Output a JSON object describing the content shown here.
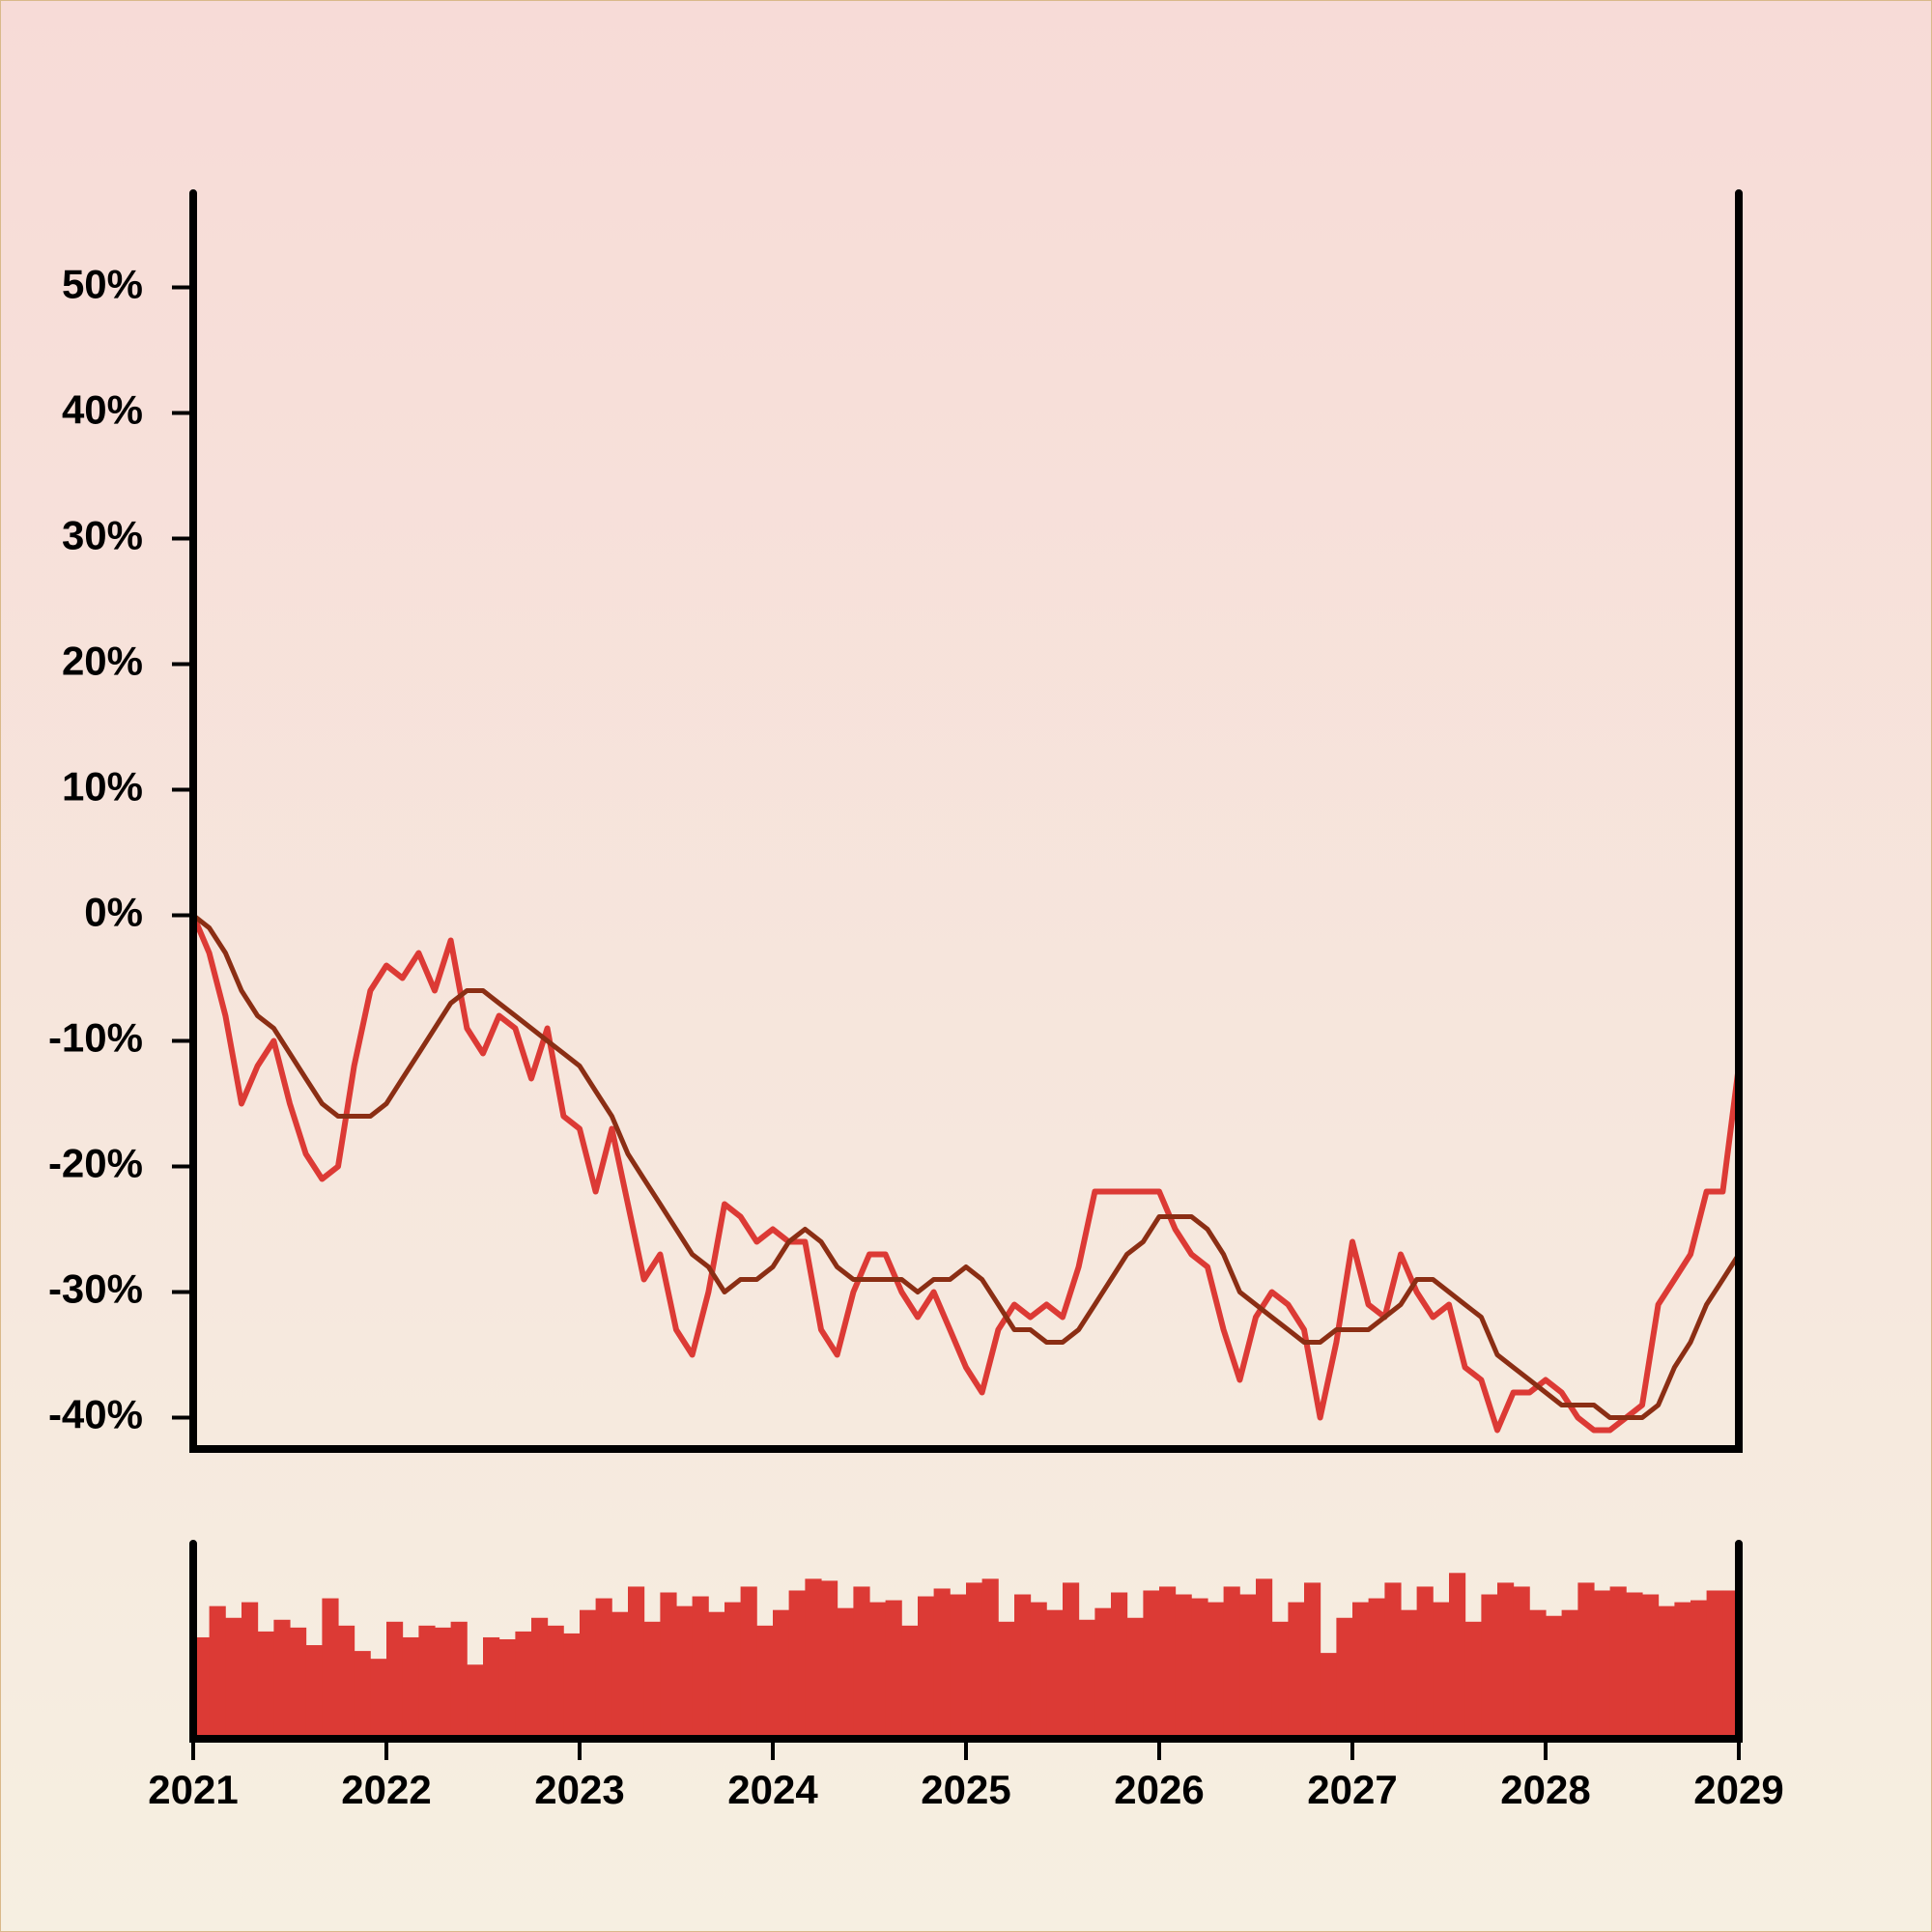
{
  "chart_data": [
    {
      "type": "line",
      "x": [
        2021,
        2021.083,
        2021.167,
        2021.25,
        2021.333,
        2021.417,
        2021.5,
        2021.583,
        2021.667,
        2021.75,
        2021.833,
        2021.917,
        2022,
        2022.083,
        2022.167,
        2022.25,
        2022.333,
        2022.417,
        2022.5,
        2022.583,
        2022.667,
        2022.75,
        2022.833,
        2022.917,
        2023,
        2023.083,
        2023.167,
        2023.25,
        2023.333,
        2023.417,
        2023.5,
        2023.583,
        2023.667,
        2023.75,
        2023.833,
        2023.917,
        2024,
        2024.083,
        2024.167,
        2024.25,
        2024.333,
        2024.417,
        2024.5,
        2024.583,
        2024.667,
        2024.75,
        2024.833,
        2024.917,
        2025,
        2025.083,
        2025.167,
        2025.25,
        2025.333,
        2025.417,
        2025.5,
        2025.583,
        2025.667,
        2025.75,
        2025.833,
        2025.917,
        2026,
        2026.083,
        2026.167,
        2026.25,
        2026.333,
        2026.417,
        2026.5,
        2026.583,
        2026.667,
        2026.75,
        2026.833,
        2026.917,
        2027,
        2027.083,
        2027.167,
        2027.25,
        2027.333,
        2027.417,
        2027.5,
        2027.583,
        2027.667,
        2027.75,
        2027.833,
        2027.917,
        2028,
        2028.083,
        2028.167,
        2028.25,
        2028.333,
        2028.417,
        2028.5,
        2028.583,
        2028.667,
        2028.75,
        2028.833,
        2028.917,
        2029
      ],
      "series": [
        {
          "color": "#dc3a35",
          "values": [
            0,
            -3,
            -8,
            -15,
            -12,
            -10,
            -15,
            -19,
            -21,
            -20,
            -12,
            -6,
            -4,
            -5,
            -3,
            -6,
            -2,
            -9,
            -11,
            -8,
            -9,
            -13,
            -9,
            -16,
            -17,
            -22,
            -17,
            -23,
            -29,
            -27,
            -33,
            -35,
            -30,
            -23,
            -24,
            -26,
            -25,
            -26,
            -26,
            -33,
            -35,
            -30,
            -27,
            -27,
            -30,
            -32,
            -30,
            -33,
            -36,
            -38,
            -33,
            -31,
            -32,
            -31,
            -32,
            -28,
            -22,
            -22,
            -22,
            -22,
            -22,
            -25,
            -27,
            -28,
            -33,
            -37,
            -32,
            -30,
            -31,
            -33,
            -40,
            -34,
            -26,
            -31,
            -32,
            -27,
            -30,
            -32,
            -31,
            -36,
            -37,
            -41,
            -38,
            -38,
            -37,
            -38,
            -40,
            -41,
            -41,
            -40,
            -39,
            -31,
            -29,
            -27,
            -22,
            -22,
            -12
          ]
        },
        {
          "color": "#8b2e14",
          "values": [
            0,
            -1,
            -3,
            -6,
            -8,
            -9,
            -11,
            -13,
            -15,
            -16,
            -16,
            -16,
            -15,
            -13,
            -11,
            -9,
            -7,
            -6,
            -6,
            -7,
            -8,
            -9,
            -10,
            -11,
            -12,
            -14,
            -16,
            -19,
            -21,
            -23,
            -25,
            -27,
            -28,
            -30,
            -29,
            -29,
            -28,
            -26,
            -25,
            -26,
            -28,
            -29,
            -29,
            -29,
            -29,
            -30,
            -29,
            -29,
            -28,
            -29,
            -31,
            -33,
            -33,
            -34,
            -34,
            -33,
            -31,
            -29,
            -27,
            -26,
            -24,
            -24,
            -24,
            -25,
            -27,
            -30,
            -31,
            -32,
            -33,
            -34,
            -34,
            -33,
            -33,
            -33,
            -32,
            -31,
            -29,
            -29,
            -30,
            -31,
            -32,
            -35,
            -36,
            -37,
            -38,
            -39,
            -39,
            -39,
            -40,
            -40,
            -40,
            -39,
            -36,
            -34,
            -31,
            -29,
            -27
          ]
        }
      ],
      "xlim": [
        2021,
        2029
      ],
      "ylim": [
        -42.5,
        57.5
      ],
      "yticks": [
        {
          "value": -40,
          "label": "-40%"
        },
        {
          "value": -30,
          "label": "-30%"
        },
        {
          "value": -20,
          "label": "-20%"
        },
        {
          "value": -10,
          "label": "-10%"
        },
        {
          "value": 0,
          "label": "0%"
        },
        {
          "value": 10,
          "label": "10%"
        },
        {
          "value": 20,
          "label": "20%"
        },
        {
          "value": 30,
          "label": "30%"
        },
        {
          "value": 40,
          "label": "40%"
        },
        {
          "value": 50,
          "label": "50%"
        }
      ]
    },
    {
      "type": "bar",
      "x": [
        2021,
        2021.083,
        2021.167,
        2021.25,
        2021.333,
        2021.417,
        2021.5,
        2021.583,
        2021.667,
        2021.75,
        2021.833,
        2021.917,
        2022,
        2022.083,
        2022.167,
        2022.25,
        2022.333,
        2022.417,
        2022.5,
        2022.583,
        2022.667,
        2022.75,
        2022.833,
        2022.917,
        2023,
        2023.083,
        2023.167,
        2023.25,
        2023.333,
        2023.417,
        2023.5,
        2023.583,
        2023.667,
        2023.75,
        2023.833,
        2023.917,
        2024,
        2024.083,
        2024.167,
        2024.25,
        2024.333,
        2024.417,
        2024.5,
        2024.583,
        2024.667,
        2024.75,
        2024.833,
        2024.917,
        2025,
        2025.083,
        2025.167,
        2025.25,
        2025.333,
        2025.417,
        2025.5,
        2025.583,
        2025.667,
        2025.75,
        2025.833,
        2025.917,
        2026,
        2026.083,
        2026.167,
        2026.25,
        2026.333,
        2026.417,
        2026.5,
        2026.583,
        2026.667,
        2026.75,
        2026.833,
        2026.917,
        2027,
        2027.083,
        2027.167,
        2027.25,
        2027.333,
        2027.417,
        2027.5,
        2027.583,
        2027.667,
        2027.75,
        2027.833,
        2027.917,
        2028,
        2028.083,
        2028.167,
        2028.25,
        2028.333,
        2028.417,
        2028.5,
        2028.583,
        2028.667,
        2028.75,
        2028.833,
        2028.917
      ],
      "color": "#dc3a35",
      "values": [
        52,
        68,
        62,
        70,
        55,
        61,
        57,
        48,
        72,
        58,
        45,
        41,
        60,
        52,
        58,
        57,
        60,
        38,
        52,
        51,
        55,
        62,
        58,
        54,
        66,
        72,
        65,
        78,
        60,
        75,
        68,
        73,
        65,
        70,
        78,
        58,
        66,
        76,
        82,
        81,
        67,
        78,
        70,
        71,
        58,
        73,
        77,
        74,
        80,
        82,
        60,
        74,
        70,
        66,
        80,
        61,
        67,
        75,
        62,
        76,
        78,
        74,
        72,
        70,
        78,
        74,
        82,
        60,
        70,
        80,
        44,
        62,
        70,
        72,
        80,
        66,
        78,
        70,
        85,
        60,
        74,
        80,
        78,
        66,
        63,
        66,
        80,
        76,
        78,
        75,
        74,
        68,
        70,
        71,
        76,
        76
      ],
      "ylim": [
        0,
        100
      ],
      "xticks": [
        2021,
        2022,
        2023,
        2024,
        2025,
        2026,
        2027,
        2028,
        2029
      ]
    }
  ]
}
